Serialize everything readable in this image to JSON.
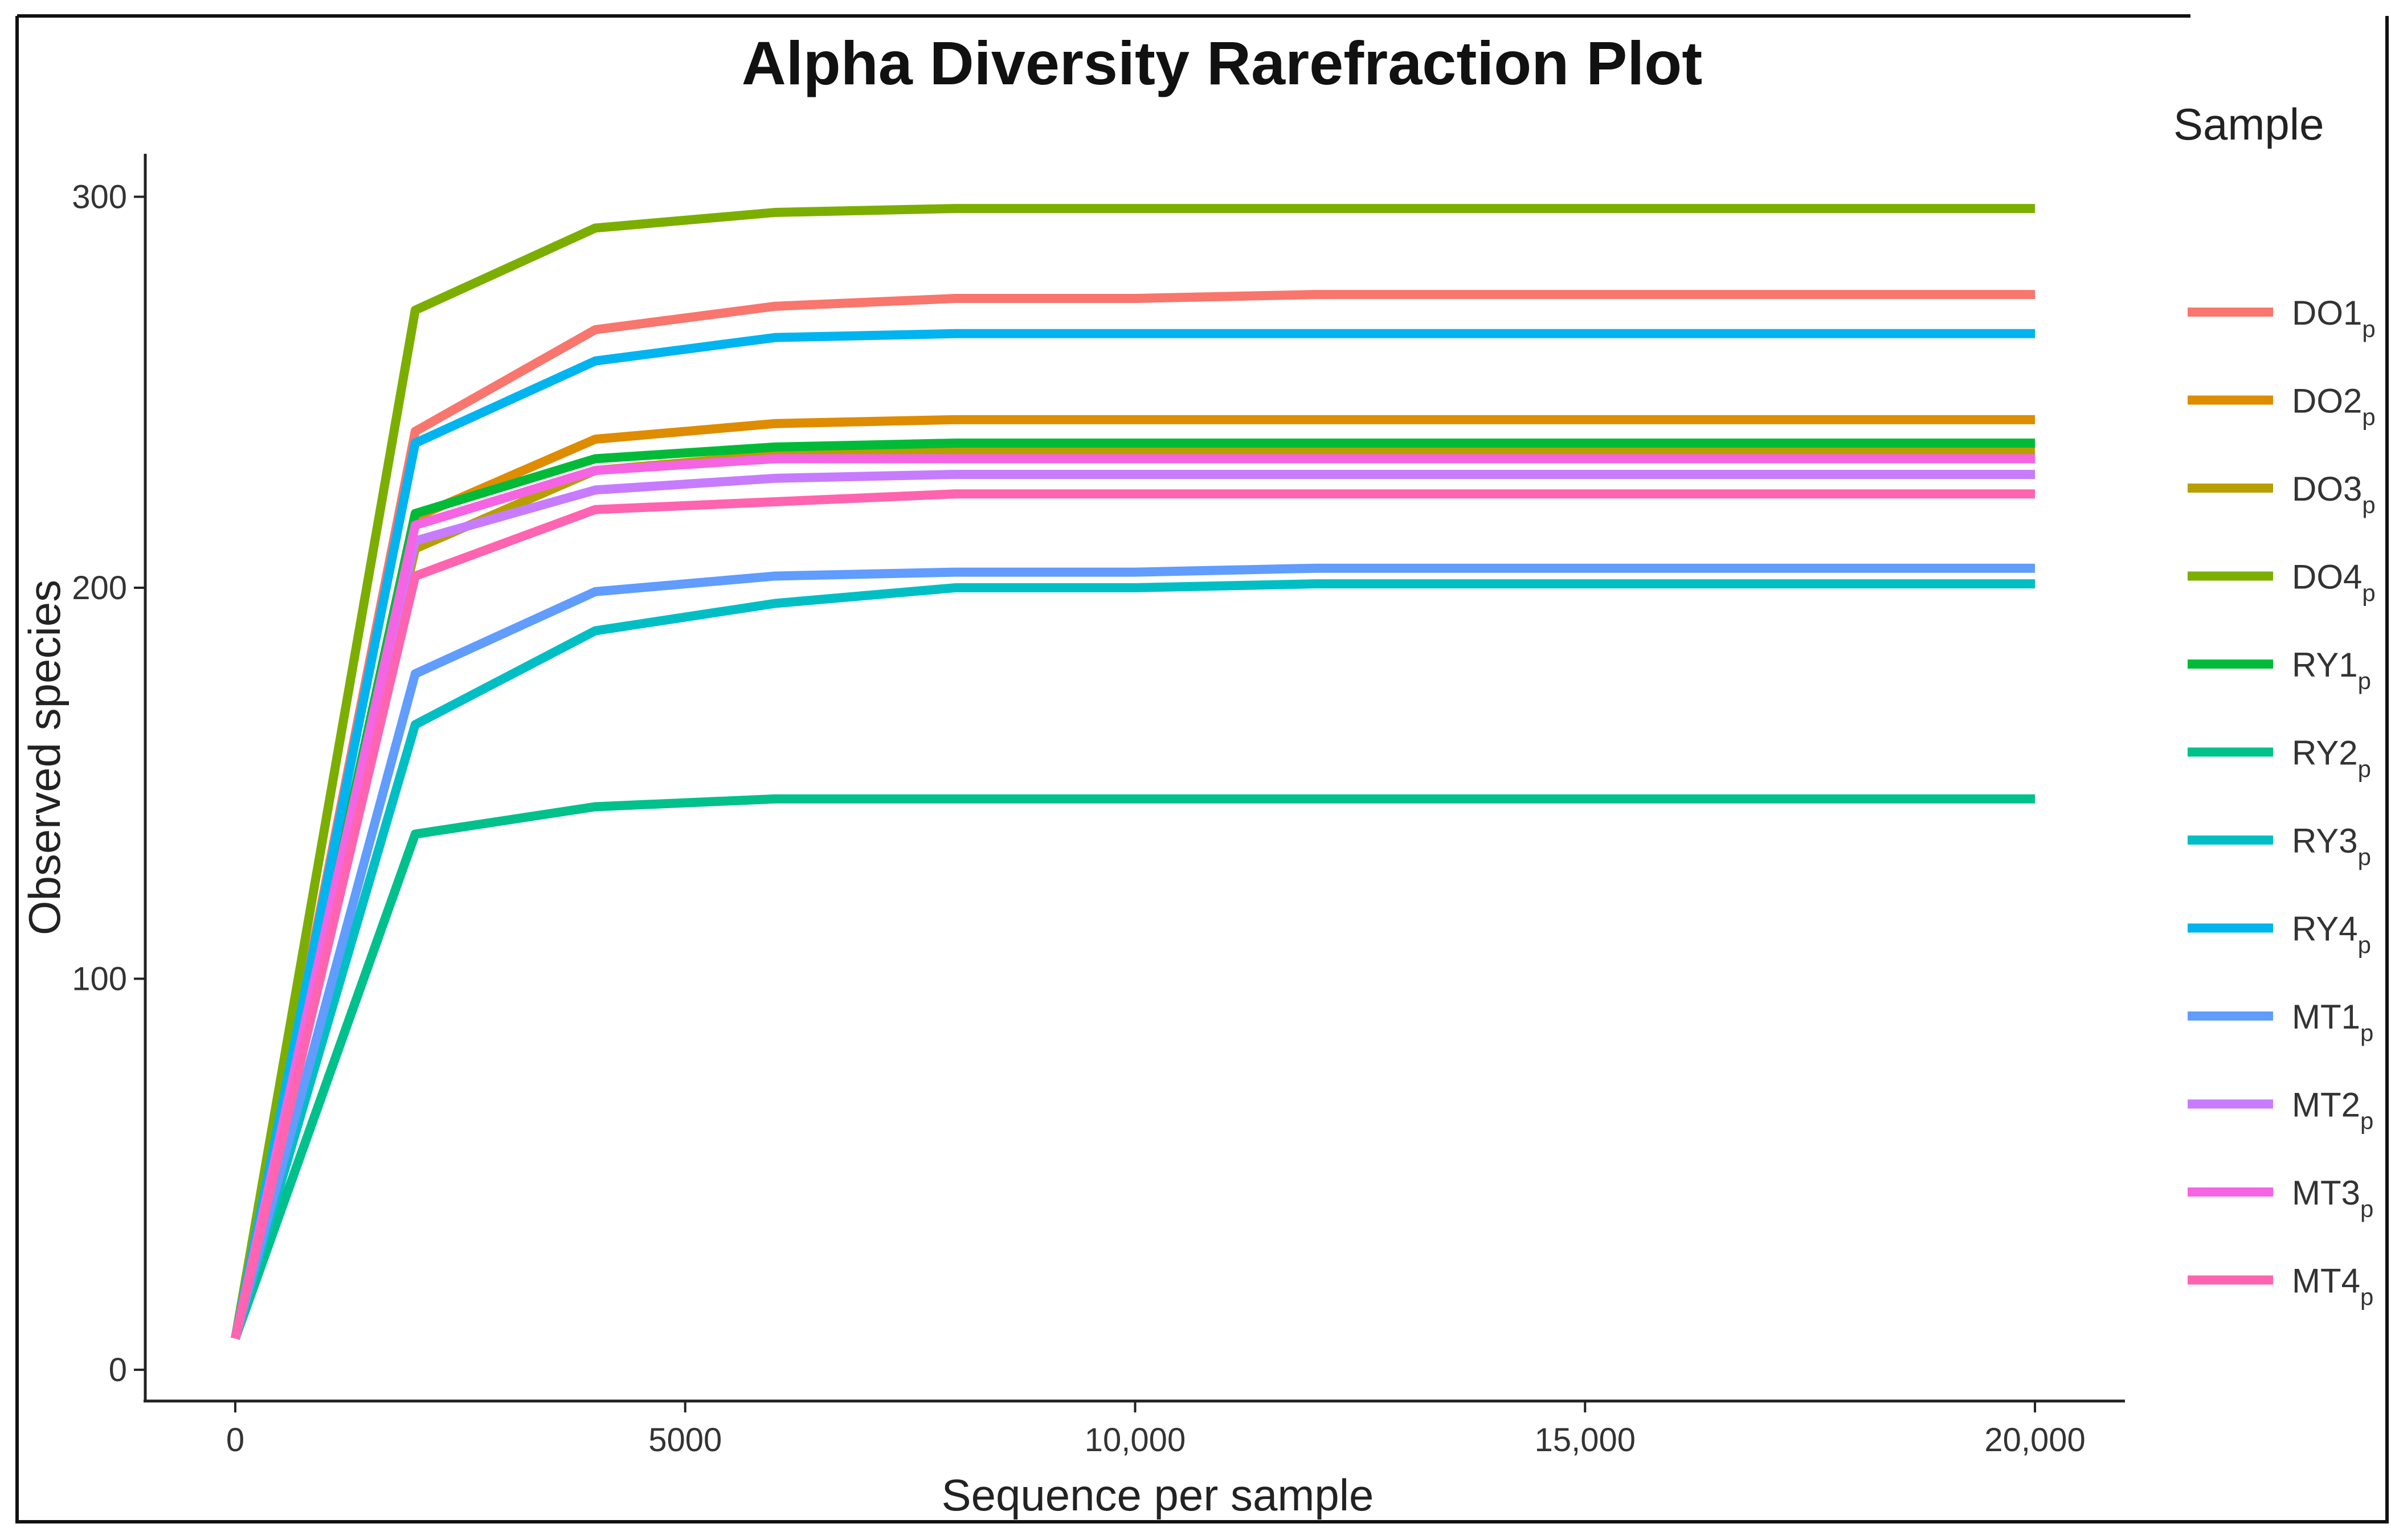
{
  "chart_data": {
    "type": "line",
    "title": "Alpha Diversity Rarefraction Plot",
    "xlabel": "Sequence per sample",
    "ylabel": "Observed species",
    "xlim": [
      -1000,
      21000
    ],
    "ylim": [
      -8,
      311
    ],
    "x_ticks": [
      0,
      5000,
      10000,
      15000,
      20000
    ],
    "x_tick_labels": [
      "0",
      "5000",
      "10,000",
      "15,000",
      "20,000"
    ],
    "y_ticks": [
      0,
      100,
      200,
      300
    ],
    "y_tick_labels": [
      "0",
      "100",
      "200",
      "300"
    ],
    "grid": false,
    "legend_title": "Sample",
    "legend_position": "right",
    "x": [
      0,
      2000,
      4000,
      6000,
      8000,
      10000,
      12000,
      14000,
      16000,
      18000,
      20000
    ],
    "series": [
      {
        "name": "DO1",
        "subscript": "p",
        "color": "#F8766D",
        "values": [
          8,
          240,
          266,
          272,
          274,
          274,
          275,
          275,
          275,
          275,
          275
        ]
      },
      {
        "name": "DO2",
        "subscript": "p",
        "color": "#DE8C00",
        "values": [
          8,
          218,
          238,
          242,
          243,
          243,
          243,
          243,
          243,
          243,
          243
        ]
      },
      {
        "name": "DO3",
        "subscript": "p",
        "color": "#B79F00",
        "values": [
          8,
          210,
          230,
          234,
          235,
          235,
          235,
          235,
          235,
          235,
          235
        ]
      },
      {
        "name": "DO4",
        "subscript": "p",
        "color": "#7CAE00",
        "values": [
          8,
          271,
          292,
          296,
          297,
          297,
          297,
          297,
          297,
          297,
          297
        ]
      },
      {
        "name": "RY1",
        "subscript": "p",
        "color": "#00BA38",
        "values": [
          8,
          219,
          233,
          236,
          237,
          237,
          237,
          237,
          237,
          237,
          237
        ]
      },
      {
        "name": "RY2",
        "subscript": "p",
        "color": "#00C08B",
        "values": [
          8,
          137,
          144,
          146,
          146,
          146,
          146,
          146,
          146,
          146,
          146
        ]
      },
      {
        "name": "RY3",
        "subscript": "p",
        "color": "#00BFC4",
        "values": [
          8,
          165,
          189,
          196,
          200,
          200,
          201,
          201,
          201,
          201,
          201
        ]
      },
      {
        "name": "RY4",
        "subscript": "p",
        "color": "#00B4F0",
        "values": [
          8,
          237,
          258,
          264,
          265,
          265,
          265,
          265,
          265,
          265,
          265
        ]
      },
      {
        "name": "MT1",
        "subscript": "p",
        "color": "#619CFF",
        "values": [
          8,
          178,
          199,
          203,
          204,
          204,
          205,
          205,
          205,
          205,
          205
        ]
      },
      {
        "name": "MT2",
        "subscript": "p",
        "color": "#C77CFF",
        "values": [
          8,
          212,
          225,
          228,
          229,
          229,
          229,
          229,
          229,
          229,
          229
        ]
      },
      {
        "name": "MT3",
        "subscript": "p",
        "color": "#F564E3",
        "values": [
          8,
          216,
          230,
          233,
          233,
          233,
          233,
          233,
          233,
          233,
          233
        ]
      },
      {
        "name": "MT4",
        "subscript": "p",
        "color": "#FF64B0",
        "values": [
          8,
          203,
          220,
          222,
          224,
          224,
          224,
          224,
          224,
          224,
          224
        ]
      }
    ]
  }
}
